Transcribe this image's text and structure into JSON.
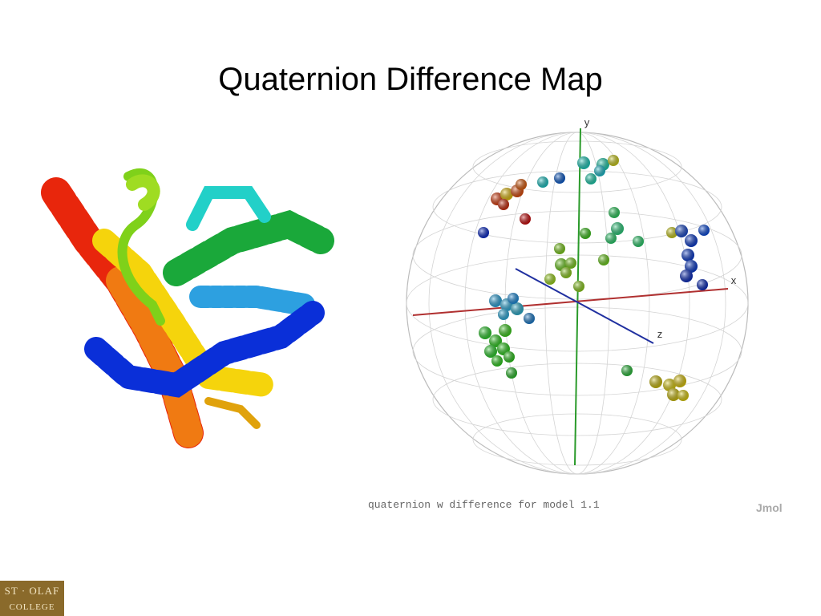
{
  "header": {
    "title": "Quaternion Difference Map"
  },
  "figure": {
    "axis_labels": [
      "y",
      "x",
      "z"
    ],
    "caption": "quaternion w difference for model 1.1",
    "watermark": "Jmol"
  },
  "logo": {
    "line1": "ST · OLAF",
    "line2": "COLLEGE"
  }
}
